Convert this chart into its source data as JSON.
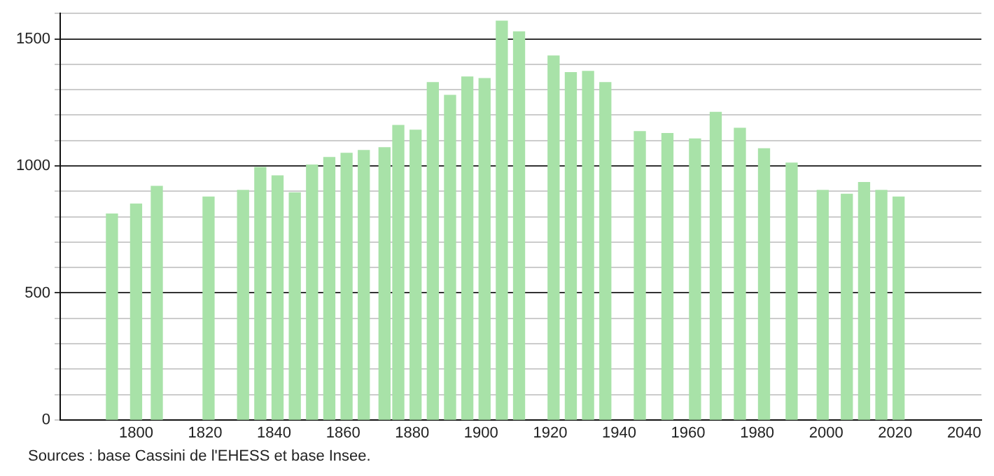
{
  "chart_data": {
    "type": "bar",
    "x": [
      1793,
      1800,
      1806,
      1821,
      1831,
      1836,
      1841,
      1846,
      1851,
      1856,
      1861,
      1866,
      1872,
      1876,
      1881,
      1886,
      1891,
      1896,
      1901,
      1906,
      1911,
      1921,
      1926,
      1931,
      1936,
      1946,
      1954,
      1962,
      1968,
      1975,
      1982,
      1990,
      1999,
      2006,
      2011,
      2016,
      2021
    ],
    "values": [
      811,
      850,
      920,
      878,
      904,
      994,
      961,
      894,
      1004,
      1033,
      1050,
      1061,
      1072,
      1159,
      1141,
      1328,
      1278,
      1350,
      1344,
      1570,
      1528,
      1433,
      1367,
      1372,
      1328,
      1135,
      1128,
      1106,
      1211,
      1148,
      1068,
      1011,
      904,
      889,
      935,
      904,
      878
    ],
    "color": "#a8e2a8",
    "xlim": [
      1778,
      2045
    ],
    "xticks": [
      1800,
      1820,
      1840,
      1860,
      1880,
      1900,
      1920,
      1940,
      1960,
      1980,
      2000,
      2020,
      2040
    ],
    "ylim": [
      0,
      1600
    ],
    "yticks": [
      0,
      {
        "value": 100,
        "label": null
      },
      {
        "value": 200,
        "label": null
      },
      {
        "value": 300,
        "label": null
      },
      {
        "value": 400,
        "label": null
      },
      500,
      {
        "value": 600,
        "label": null
      },
      {
        "value": 700,
        "label": null
      },
      {
        "value": 800,
        "label": null
      },
      {
        "value": 900,
        "label": null
      },
      1000,
      {
        "value": 1100,
        "label": null
      },
      {
        "value": 1200,
        "label": null
      },
      {
        "value": 1300,
        "label": null
      },
      {
        "value": 1400,
        "label": null
      },
      1500,
      {
        "value": 1600,
        "label": null
      }
    ],
    "grid": "y",
    "annotations": [
      "Sources : base Cassini de l'EHESS et base Insee."
    ]
  }
}
